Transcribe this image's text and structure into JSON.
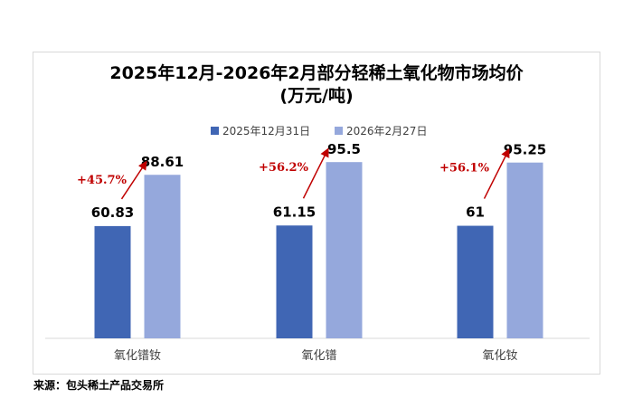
{
  "chart_data": {
    "type": "bar",
    "title_line1": "2025年12月-2026年2月部分轻稀土氧化物市场均价",
    "title_line2": "(万元/吨)",
    "categories": [
      "氧化镨钕",
      "氧化镨",
      "氧化钕"
    ],
    "series": [
      {
        "name": "2025年12月31日",
        "values": [
          60.83,
          61.15,
          61
        ],
        "labels": [
          "60.83",
          "61.15",
          "61"
        ],
        "color": "#4066b4"
      },
      {
        "name": "2026年2月27日",
        "values": [
          88.61,
          95.5,
          95.25
        ],
        "labels": [
          "88.61",
          "95.5",
          "95.25"
        ],
        "color": "#95a8dc"
      }
    ],
    "changes": [
      "+45.7%",
      "+56.2%",
      "+56.1%"
    ],
    "change_color": "#c00000",
    "grid": false,
    "legend_position": "top"
  },
  "source": "来源：包头稀土产品交易所"
}
